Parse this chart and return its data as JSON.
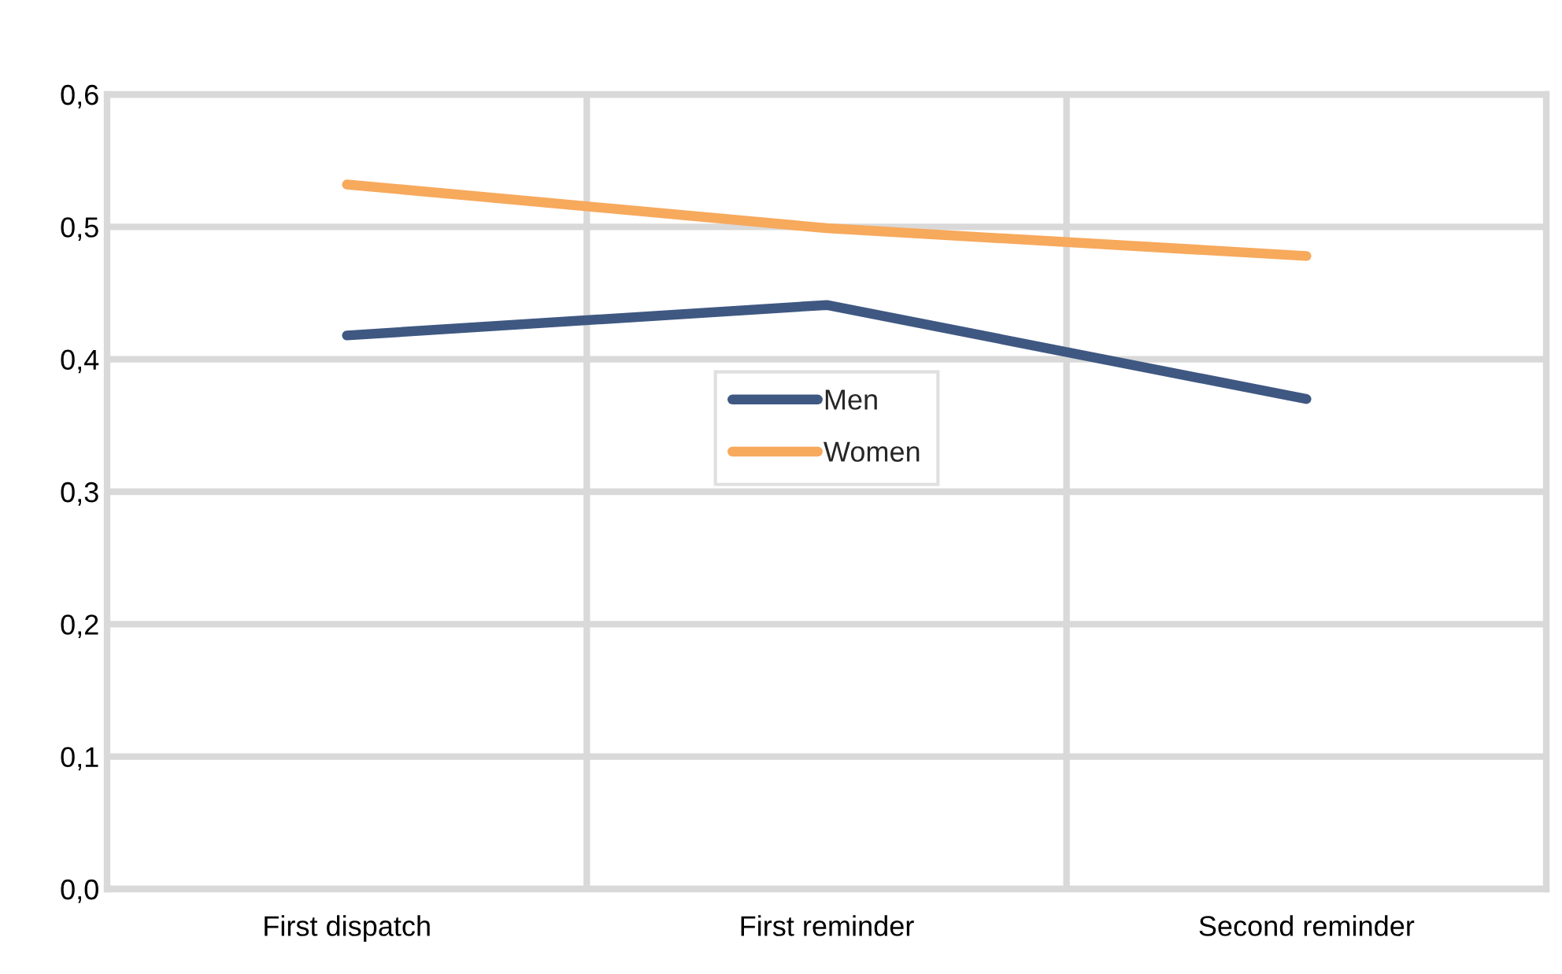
{
  "chart_data": {
    "type": "line",
    "categories": [
      "First dispatch",
      "First reminder",
      "Second reminder"
    ],
    "series": [
      {
        "name": "Men",
        "color": "#3f5882",
        "values": [
          0.418,
          0.441,
          0.37
        ]
      },
      {
        "name": "Women",
        "color": "#f7a95c",
        "values": [
          0.532,
          0.499,
          0.478
        ]
      }
    ],
    "ylim": [
      0,
      0.6
    ],
    "yticks": [
      {
        "value": 0,
        "label": "0,0"
      },
      {
        "value": 0.1,
        "label": "0,1"
      },
      {
        "value": 0.2,
        "label": "0,2"
      },
      {
        "value": 0.3,
        "label": "0,3"
      },
      {
        "value": 0.4,
        "label": "0,4"
      },
      {
        "value": 0.5,
        "label": "0,5"
      },
      {
        "value": 0.6,
        "label": "0,6"
      }
    ],
    "grid": true,
    "legend": "center",
    "marker": "none",
    "line_style": "solid"
  }
}
